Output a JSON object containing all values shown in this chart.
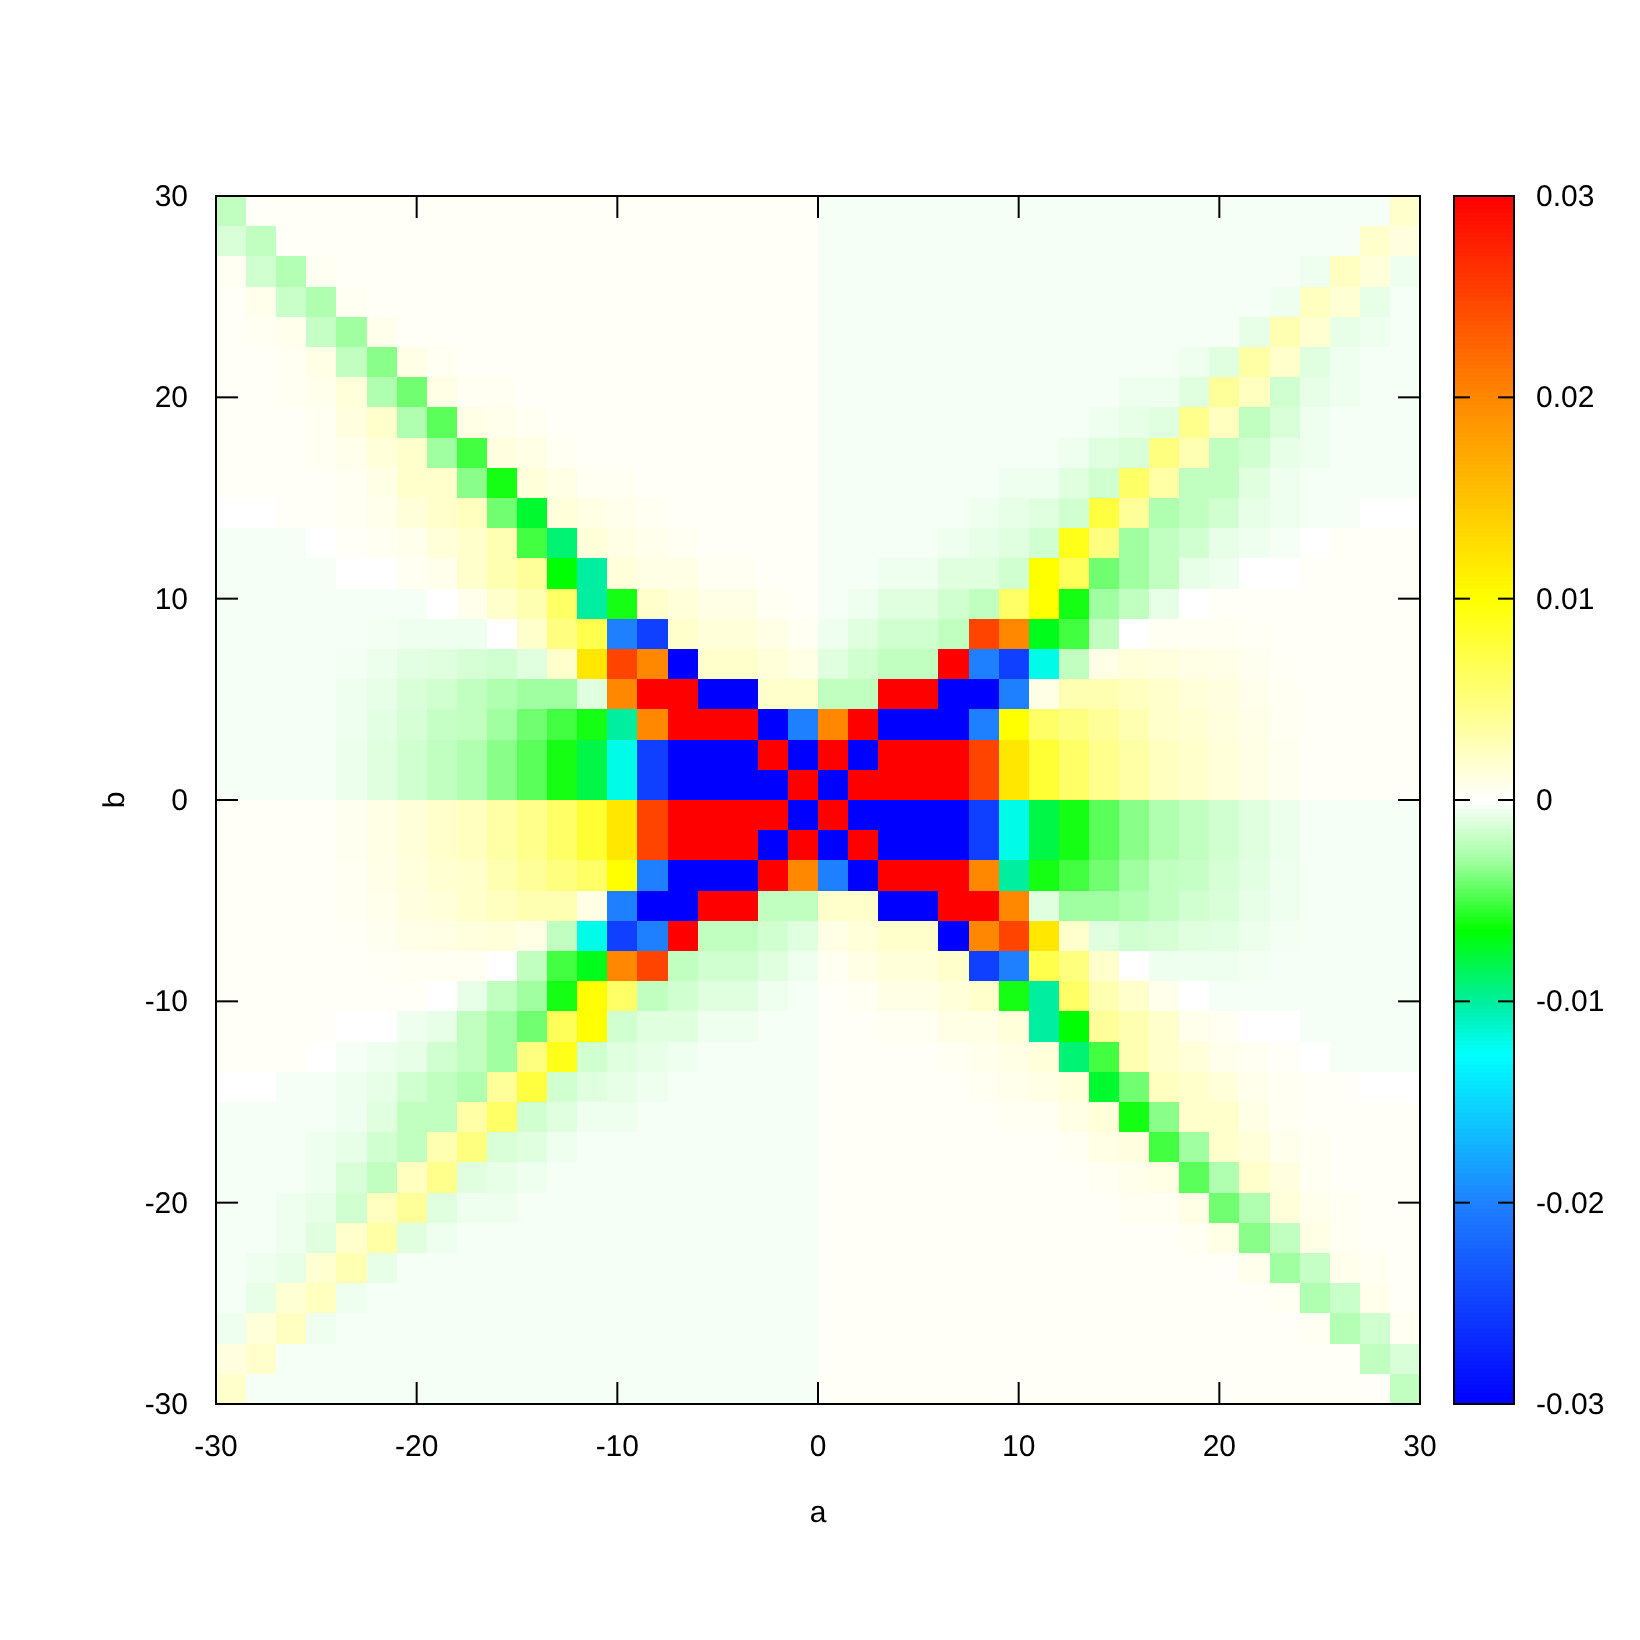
{
  "chart_data": {
    "type": "heatmap",
    "xlabel": "a",
    "ylabel": "b",
    "xlim": [
      -30,
      30
    ],
    "ylim": [
      -30,
      30
    ],
    "xticks": [
      -30,
      -20,
      -10,
      0,
      10,
      20,
      30
    ],
    "yticks": [
      -30,
      -20,
      -10,
      0,
      10,
      20,
      30
    ],
    "clim": [
      -0.03,
      0.03
    ],
    "cticks": [
      -0.03,
      -0.02,
      -0.01,
      0,
      0.01,
      0.02,
      0.03
    ],
    "cells": [
      [
        -0.002,
        0.0003,
        0.0003,
        0.0003,
        0.0003,
        0.0003,
        0.0003,
        0.0003,
        0.0003,
        0.0003,
        0.0003,
        0.0003,
        0.0003,
        0.0003,
        0.0003,
        0.0003,
        0.0003,
        0.0003,
        0.0003,
        0.0003,
        -0.0003,
        -0.0003,
        -0.0003,
        -0.0003,
        -0.0003,
        -0.0003,
        -0.0003,
        -0.0003,
        -0.0003,
        -0.0003,
        -0.0003,
        -0.0003,
        -0.0003,
        -0.0003,
        -0.0003,
        -0.0003,
        -0.0003,
        -0.0003,
        -0.0003,
        0.002
      ],
      [
        -0.0012,
        -0.002,
        0.0003,
        0.0003,
        0.0003,
        0.0003,
        0.0003,
        0.0003,
        0.0003,
        0.0003,
        0.0003,
        0.0003,
        0.0003,
        0.0003,
        0.0003,
        0.0003,
        0.0003,
        0.0003,
        0.0003,
        0.0003,
        -0.0003,
        -0.0003,
        -0.0003,
        -0.0003,
        -0.0003,
        -0.0003,
        -0.0003,
        -0.0003,
        -0.0003,
        -0.0003,
        -0.0003,
        -0.0003,
        -0.0003,
        -0.0003,
        -0.0003,
        -0.0003,
        -0.0003,
        -0.0003,
        0.002,
        0.0012
      ],
      [
        0.0005,
        -0.0015,
        -0.0024,
        0.0005,
        0.0003,
        0.0003,
        0.0003,
        0.0003,
        0.0003,
        0.0003,
        0.0003,
        0.0003,
        0.0003,
        0.0003,
        0.0003,
        0.0003,
        0.0003,
        0.0003,
        0.0003,
        0.0003,
        -0.0003,
        -0.0003,
        -0.0003,
        -0.0003,
        -0.0003,
        -0.0003,
        -0.0003,
        -0.0003,
        -0.0003,
        -0.0003,
        -0.0003,
        -0.0003,
        -0.0003,
        -0.0003,
        -0.0003,
        -0.0003,
        -0.0005,
        0.0024,
        0.0015,
        -0.0005
      ],
      [
        0.0003,
        0.0008,
        -0.0017,
        -0.0025,
        0.0005,
        0.0003,
        0.0003,
        0.0003,
        0.0003,
        0.0003,
        0.0003,
        0.0003,
        0.0003,
        0.0003,
        0.0003,
        0.0003,
        0.0003,
        0.0003,
        0.0003,
        0.0003,
        -0.0003,
        -0.0003,
        -0.0003,
        -0.0003,
        -0.0003,
        -0.0003,
        -0.0003,
        -0.0003,
        -0.0003,
        -0.0003,
        -0.0003,
        -0.0003,
        -0.0003,
        -0.0003,
        -0.0003,
        -0.0005,
        0.0025,
        0.0017,
        -0.0008,
        -0.0003
      ],
      [
        0.0003,
        0.0005,
        0.0008,
        -0.0018,
        -0.003,
        0.0008,
        0.0003,
        0.0003,
        0.0003,
        0.0003,
        0.0003,
        0.0003,
        0.0003,
        0.0003,
        0.0003,
        0.0003,
        0.0003,
        0.0003,
        0.0003,
        0.0003,
        -0.0003,
        -0.0003,
        -0.0003,
        -0.0003,
        -0.0003,
        -0.0003,
        -0.0003,
        -0.0003,
        -0.0003,
        -0.0003,
        -0.0003,
        -0.0003,
        -0.0003,
        -0.0003,
        -0.0008,
        0.003,
        0.0018,
        -0.0008,
        -0.0005,
        -0.0003
      ],
      [
        0.0003,
        0.0003,
        0.0005,
        0.001,
        -0.002,
        -0.0035,
        0.001,
        0.0005,
        0.0003,
        0.0003,
        0.0003,
        0.0003,
        0.0003,
        0.0003,
        0.0003,
        0.0003,
        0.0003,
        0.0003,
        0.0003,
        0.0003,
        -0.0003,
        -0.0003,
        -0.0003,
        -0.0003,
        -0.0003,
        -0.0003,
        -0.0003,
        -0.0003,
        -0.0003,
        -0.0003,
        -0.0003,
        -0.0003,
        -0.0005,
        -0.001,
        0.0035,
        0.002,
        -0.001,
        -0.0005,
        -0.0003,
        -0.0003
      ],
      [
        0.0003,
        0.0003,
        0.0005,
        0.0008,
        0.0015,
        -0.0025,
        -0.004,
        0.001,
        0.0005,
        0.0005,
        0.0003,
        0.0003,
        0.0003,
        0.0003,
        0.0003,
        0.0003,
        0.0003,
        0.0003,
        0.0003,
        0.0003,
        -0.0003,
        -0.0003,
        -0.0003,
        -0.0003,
        -0.0003,
        -0.0003,
        -0.0003,
        -0.0003,
        -0.0003,
        -0.0003,
        -0.0005,
        -0.0005,
        -0.001,
        0.004,
        0.0025,
        -0.0015,
        -0.0008,
        -0.0005,
        -0.0003,
        -0.0003
      ],
      [
        0.0003,
        0.0003,
        0.0003,
        0.0005,
        0.0012,
        0.002,
        -0.0025,
        -0.0045,
        0.001,
        0.0008,
        0.0005,
        0.0003,
        0.0003,
        0.0003,
        0.0003,
        0.0003,
        0.0003,
        0.0003,
        0.0003,
        0.0003,
        -0.0003,
        -0.0003,
        -0.0003,
        -0.0003,
        -0.0003,
        -0.0003,
        -0.0003,
        -0.0003,
        -0.0003,
        -0.0005,
        -0.0008,
        -0.001,
        0.0045,
        0.0025,
        -0.002,
        -0.0012,
        -0.0005,
        -0.0003,
        -0.0003,
        -0.0003
      ],
      [
        0.0003,
        0.0003,
        0.0003,
        0.0005,
        0.0008,
        0.0015,
        0.002,
        -0.003,
        -0.005,
        0.0012,
        0.001,
        0.0005,
        0.0003,
        0.0003,
        0.0003,
        0.0003,
        0.0003,
        0.0003,
        0.0003,
        0.0003,
        -0.0003,
        -0.0003,
        -0.0003,
        -0.0003,
        -0.0003,
        -0.0003,
        -0.0003,
        -0.0003,
        -0.0005,
        -0.001,
        -0.0012,
        0.005,
        0.003,
        -0.002,
        -0.0015,
        -0.0008,
        -0.0005,
        -0.0003,
        -0.0003,
        -0.0003
      ],
      [
        0.0003,
        0.0003,
        0.0003,
        0.0003,
        0.0005,
        0.001,
        0.002,
        0.002,
        -0.0035,
        -0.006,
        0.0015,
        0.001,
        0.0005,
        0.0005,
        0.0003,
        0.0003,
        0.0003,
        0.0003,
        0.0003,
        0.0003,
        -0.0003,
        -0.0003,
        -0.0003,
        -0.0003,
        -0.0003,
        -0.0003,
        -0.0005,
        -0.0005,
        -0.001,
        -0.0015,
        0.006,
        0.0035,
        -0.002,
        -0.002,
        -0.001,
        -0.0005,
        -0.0003,
        -0.0003,
        -0.0003,
        -0.0003
      ],
      [
        0,
        0,
        0.0003,
        0.0003,
        0.0005,
        0.0008,
        0.0015,
        0.002,
        0.0025,
        -0.004,
        -0.0075,
        0.0015,
        0.001,
        0.0008,
        0.0005,
        0.0003,
        0.0003,
        0.0003,
        0.0003,
        0.0003,
        -0.0003,
        -0.0003,
        -0.0003,
        -0.0003,
        -0.0003,
        -0.0005,
        -0.0008,
        -0.001,
        -0.0015,
        0.0075,
        0.004,
        -0.0025,
        -0.002,
        -0.0015,
        -0.0008,
        -0.0005,
        -0.0003,
        -0.0003,
        0,
        0
      ],
      [
        -0.0003,
        -0.0003,
        -0.0003,
        0,
        0.0003,
        0.0005,
        0.0008,
        0.0015,
        0.002,
        0.003,
        -0.005,
        -0.009,
        0.0015,
        0.001,
        0.0008,
        0.0005,
        0.0003,
        0.0003,
        0.0003,
        0.0003,
        -0.0003,
        -0.0003,
        -0.0003,
        -0.0003,
        -0.0005,
        -0.0008,
        -0.001,
        -0.0015,
        0.009,
        0.005,
        -0.003,
        -0.002,
        -0.0015,
        -0.0008,
        -0.0005,
        -0.0003,
        0,
        0.0003,
        0.0003,
        0.0003
      ],
      [
        -0.0003,
        -0.0003,
        -0.0003,
        -0.0003,
        0,
        0,
        0.0005,
        0.0008,
        0.002,
        0.003,
        0.004,
        -0.0065,
        -0.01,
        0.0015,
        0.001,
        0.001,
        0.0005,
        0.0005,
        0.0003,
        0.0003,
        -0.0003,
        -0.0003,
        -0.0005,
        -0.0005,
        -0.001,
        -0.001,
        -0.0015,
        0.01,
        0.0065,
        -0.004,
        -0.003,
        -0.002,
        -0.0008,
        -0.0005,
        0,
        0,
        0.0003,
        0.0003,
        0.0003,
        0.0003
      ],
      [
        -0.0003,
        -0.0003,
        -0.0003,
        -0.0003,
        -0.0003,
        -0.0003,
        -0.0003,
        0,
        0.0008,
        0.002,
        0.003,
        0.006,
        -0.01,
        -0.006,
        0.002,
        0.0015,
        0.001,
        0.001,
        0.0005,
        0.0003,
        -0.0003,
        -0.0005,
        -0.001,
        -0.001,
        -0.0015,
        -0.002,
        0.006,
        0.01,
        -0.006,
        -0.003,
        -0.002,
        -0.0008,
        0,
        0.0003,
        0.0003,
        0.0003,
        0.0003,
        0.0003,
        0.0003,
        0.0003
      ],
      [
        -0.0003,
        -0.0003,
        -0.0003,
        -0.0003,
        -0.0003,
        -0.0004,
        -0.0005,
        -0.0005,
        -0.0005,
        0,
        0.002,
        0.005,
        0.007,
        -0.02,
        -0.025,
        0.002,
        0.0015,
        0.0015,
        0.001,
        0.0005,
        -0.0005,
        -0.001,
        -0.0015,
        -0.0015,
        -0.002,
        0.025,
        0.02,
        -0.007,
        -0.005,
        -0.002,
        0,
        0.0005,
        0.0005,
        0.0005,
        0.0004,
        0.0003,
        0.0003,
        0.0003,
        0.0003,
        0.0003
      ],
      [
        -0.0003,
        -0.0003,
        -0.0003,
        -0.0003,
        -0.0004,
        -0.0006,
        -0.0009,
        -0.001,
        -0.0013,
        -0.0015,
        -0.001,
        0.002,
        0.012,
        0.025,
        0.02,
        -0.03,
        0.002,
        0.002,
        0.0015,
        0.001,
        -0.001,
        -0.0015,
        -0.002,
        -0.002,
        0.03,
        -0.02,
        -0.025,
        -0.012,
        -0.002,
        0.001,
        0.0015,
        0.0013,
        0.001,
        0.0009,
        0.0006,
        0.0004,
        0.0003,
        0.0003,
        0.0003,
        0.0003
      ],
      [
        -0.0003,
        -0.0003,
        -0.0003,
        -0.0003,
        -0.0005,
        -0.0008,
        -0.0012,
        -0.0015,
        -0.002,
        -0.0025,
        -0.003,
        -0.003,
        -0.001,
        0.02,
        0.03,
        0.03,
        -0.03,
        -0.03,
        0.002,
        0.002,
        -0.002,
        -0.002,
        0.03,
        0.03,
        -0.03,
        -0.03,
        -0.02,
        0.001,
        0.003,
        0.003,
        0.0025,
        0.002,
        0.0015,
        0.0012,
        0.0008,
        0.0005,
        0.0003,
        0.0003,
        0.0003,
        0.0003
      ],
      [
        -0.0003,
        -0.0003,
        -0.0003,
        -0.0003,
        -0.0005,
        -0.0009,
        -0.0013,
        -0.0018,
        -0.002,
        -0.003,
        -0.004,
        -0.005,
        -0.006,
        -0.01,
        0.02,
        0.03,
        0.03,
        0.03,
        -0.03,
        -0.02,
        0.02,
        0.03,
        -0.03,
        -0.03,
        -0.03,
        -0.02,
        0.01,
        0.006,
        0.005,
        0.004,
        0.003,
        0.002,
        0.0018,
        0.0013,
        0.0009,
        0.0005,
        0.0003,
        0.0003,
        0.0003,
        0.0003
      ],
      [
        -0.0003,
        -0.0003,
        -0.0003,
        -0.0003,
        -0.0006,
        -0.001,
        -0.0015,
        -0.002,
        -0.0025,
        -0.0035,
        -0.0045,
        -0.006,
        -0.008,
        -0.012,
        -0.025,
        -0.03,
        -0.03,
        -0.03,
        0.03,
        -0.03,
        0.03,
        -0.03,
        0.03,
        0.03,
        0.03,
        0.025,
        0.012,
        0.008,
        0.006,
        0.0045,
        0.0035,
        0.0025,
        0.002,
        0.0015,
        0.001,
        0.0006,
        0.0003,
        0.0003,
        0.0003,
        0.0003
      ],
      [
        -0.0003,
        -0.0003,
        -0.0003,
        -0.0003,
        -0.0006,
        -0.001,
        -0.0015,
        -0.002,
        -0.0025,
        -0.0035,
        -0.0045,
        -0.006,
        -0.008,
        -0.012,
        -0.025,
        -0.03,
        -0.03,
        -0.03,
        -0.03,
        0.03,
        -0.03,
        0.03,
        0.03,
        0.03,
        0.03,
        0.025,
        0.012,
        0.008,
        0.006,
        0.0045,
        0.0035,
        0.0025,
        0.002,
        0.0015,
        0.001,
        0.0006,
        0.0003,
        0.0003,
        0.0003,
        0.0003
      ],
      [
        0.0003,
        0.0003,
        0.0003,
        0.0003,
        0.0006,
        0.001,
        0.0015,
        0.002,
        0.0025,
        0.0035,
        0.0045,
        0.006,
        0.008,
        0.012,
        0.025,
        0.03,
        0.03,
        0.03,
        0.03,
        -0.03,
        0.03,
        -0.03,
        -0.03,
        -0.03,
        -0.03,
        -0.025,
        -0.012,
        -0.008,
        -0.006,
        -0.0045,
        -0.0035,
        -0.0025,
        -0.002,
        -0.0015,
        -0.001,
        -0.0006,
        -0.0003,
        -0.0003,
        -0.0003,
        -0.0003
      ],
      [
        0.0003,
        0.0003,
        0.0003,
        0.0003,
        0.0006,
        0.001,
        0.0015,
        0.002,
        0.0025,
        0.0035,
        0.0045,
        0.006,
        0.008,
        0.012,
        0.025,
        0.03,
        0.03,
        0.03,
        -0.03,
        0.03,
        -0.03,
        0.03,
        -0.03,
        -0.03,
        -0.03,
        -0.025,
        -0.012,
        -0.008,
        -0.006,
        -0.0045,
        -0.0035,
        -0.0025,
        -0.002,
        -0.0015,
        -0.001,
        -0.0006,
        -0.0003,
        -0.0003,
        -0.0003,
        -0.0003
      ],
      [
        0.0003,
        0.0003,
        0.0003,
        0.0003,
        0.0005,
        0.0009,
        0.0013,
        0.0018,
        0.002,
        0.003,
        0.004,
        0.005,
        0.006,
        0.01,
        -0.02,
        -0.03,
        -0.03,
        -0.03,
        0.03,
        0.02,
        -0.02,
        -0.03,
        0.03,
        0.03,
        0.03,
        0.02,
        -0.01,
        -0.006,
        -0.005,
        -0.004,
        -0.003,
        -0.002,
        -0.0018,
        -0.0013,
        -0.0009,
        -0.0005,
        -0.0003,
        -0.0003,
        -0.0003,
        -0.0003
      ],
      [
        0.0003,
        0.0003,
        0.0003,
        0.0003,
        0.0005,
        0.0008,
        0.0012,
        0.0015,
        0.002,
        0.0025,
        0.003,
        0.003,
        0.001,
        -0.02,
        -0.03,
        -0.03,
        0.03,
        0.03,
        -0.002,
        -0.002,
        0.002,
        0.002,
        -0.03,
        -0.03,
        0.03,
        0.03,
        0.02,
        -0.001,
        -0.003,
        -0.003,
        -0.0025,
        -0.002,
        -0.0015,
        -0.0012,
        -0.0008,
        -0.0005,
        -0.0003,
        -0.0003,
        -0.0003,
        -0.0003
      ],
      [
        0.0003,
        0.0003,
        0.0003,
        0.0003,
        0.0004,
        0.0006,
        0.0009,
        0.001,
        0.0013,
        0.0015,
        0.001,
        -0.002,
        -0.012,
        -0.025,
        -0.02,
        0.03,
        -0.002,
        -0.002,
        -0.0015,
        -0.001,
        0.001,
        0.0015,
        0.002,
        0.002,
        -0.03,
        0.02,
        0.025,
        0.012,
        0.002,
        -0.001,
        -0.0015,
        -0.0013,
        -0.001,
        -0.0009,
        -0.0006,
        -0.0004,
        -0.0003,
        -0.0003,
        -0.0003,
        -0.0003
      ],
      [
        0.0003,
        0.0003,
        0.0003,
        0.0003,
        0.0003,
        0.0004,
        0.0005,
        0.0005,
        0.0005,
        0,
        -0.002,
        -0.005,
        -0.007,
        0.02,
        0.025,
        -0.002,
        -0.0015,
        -0.0015,
        -0.001,
        -0.0005,
        0.0005,
        0.001,
        0.0015,
        0.0015,
        0.002,
        -0.025,
        -0.02,
        0.007,
        0.005,
        0.002,
        0,
        -0.0005,
        -0.0005,
        -0.0005,
        -0.0004,
        -0.0003,
        -0.0003,
        -0.0003,
        -0.0003,
        -0.0003
      ],
      [
        0.0003,
        0.0003,
        0.0003,
        0.0003,
        0.0003,
        0.0003,
        0.0003,
        0,
        -0.0008,
        -0.002,
        -0.003,
        -0.006,
        0.01,
        0.006,
        -0.002,
        -0.0015,
        -0.001,
        -0.001,
        -0.0005,
        -0.0003,
        0.0003,
        0.0005,
        0.001,
        0.001,
        0.0015,
        0.002,
        -0.006,
        -0.01,
        0.006,
        0.003,
        0.002,
        0.0008,
        0,
        -0.0003,
        -0.0003,
        -0.0003,
        -0.0003,
        -0.0003,
        -0.0003,
        -0.0003
      ],
      [
        0.0003,
        0.0003,
        0.0003,
        0.0003,
        0,
        0,
        -0.0005,
        -0.0008,
        -0.002,
        -0.003,
        -0.004,
        0.0065,
        0.01,
        -0.0015,
        -0.001,
        -0.001,
        -0.0005,
        -0.0005,
        -0.0003,
        -0.0003,
        0.0003,
        0.0003,
        0.0005,
        0.0005,
        0.001,
        0.001,
        0.0015,
        -0.01,
        -0.0065,
        0.004,
        0.003,
        0.002,
        0.0008,
        0.0005,
        0,
        0,
        -0.0003,
        -0.0003,
        -0.0003,
        -0.0003
      ],
      [
        0.0003,
        0.0003,
        0.0003,
        0,
        -0.0003,
        -0.0005,
        -0.0008,
        -0.0015,
        -0.002,
        -0.003,
        0.005,
        0.009,
        -0.0015,
        -0.001,
        -0.0008,
        -0.0005,
        -0.0003,
        -0.0003,
        -0.0003,
        -0.0003,
        0.0003,
        0.0003,
        0.0003,
        0.0003,
        0.0005,
        0.0008,
        0.001,
        0.0015,
        -0.009,
        -0.005,
        0.003,
        0.002,
        0.0015,
        0.0008,
        0.0005,
        0.0003,
        0,
        -0.0003,
        -0.0003,
        -0.0003
      ],
      [
        0,
        0,
        -0.0003,
        -0.0003,
        -0.0005,
        -0.0008,
        -0.0015,
        -0.002,
        -0.0025,
        0.004,
        0.0075,
        -0.0015,
        -0.001,
        -0.0008,
        -0.0005,
        -0.0003,
        -0.0003,
        -0.0003,
        -0.0003,
        -0.0003,
        0.0003,
        0.0003,
        0.0003,
        0.0003,
        0.0003,
        0.0005,
        0.0008,
        0.001,
        0.0015,
        -0.0075,
        -0.004,
        0.0025,
        0.002,
        0.0015,
        0.0008,
        0.0005,
        0.0003,
        0.0003,
        0,
        0
      ],
      [
        -0.0003,
        -0.0003,
        -0.0003,
        -0.0003,
        -0.0005,
        -0.001,
        -0.002,
        -0.002,
        0.0035,
        0.006,
        -0.0015,
        -0.001,
        -0.0005,
        -0.0005,
        -0.0003,
        -0.0003,
        -0.0003,
        -0.0003,
        -0.0003,
        -0.0003,
        0.0003,
        0.0003,
        0.0003,
        0.0003,
        0.0003,
        0.0003,
        0.0005,
        0.0005,
        0.001,
        0.0015,
        -0.006,
        -0.0035,
        0.002,
        0.002,
        0.001,
        0.0005,
        0.0003,
        0.0003,
        0.0003,
        0.0003
      ],
      [
        -0.0003,
        -0.0003,
        -0.0003,
        -0.0005,
        -0.0008,
        -0.0015,
        -0.002,
        0.003,
        0.005,
        -0.0012,
        -0.001,
        -0.0005,
        -0.0003,
        -0.0003,
        -0.0003,
        -0.0003,
        -0.0003,
        -0.0003,
        -0.0003,
        -0.0003,
        0.0003,
        0.0003,
        0.0003,
        0.0003,
        0.0003,
        0.0003,
        0.0003,
        0.0003,
        0.0005,
        0.001,
        0.0012,
        -0.005,
        -0.003,
        0.002,
        0.0015,
        0.0008,
        0.0005,
        0.0003,
        0.0003,
        0.0003
      ],
      [
        -0.0003,
        -0.0003,
        -0.0003,
        -0.0005,
        -0.0012,
        -0.002,
        0.0025,
        0.0045,
        -0.001,
        -0.0008,
        -0.0005,
        -0.0003,
        -0.0003,
        -0.0003,
        -0.0003,
        -0.0003,
        -0.0003,
        -0.0003,
        -0.0003,
        -0.0003,
        0.0003,
        0.0003,
        0.0003,
        0.0003,
        0.0003,
        0.0003,
        0.0003,
        0.0003,
        0.0003,
        0.0005,
        0.0008,
        0.001,
        -0.0045,
        -0.0025,
        0.002,
        0.0012,
        0.0005,
        0.0003,
        0.0003,
        0.0003
      ],
      [
        -0.0003,
        -0.0003,
        -0.0005,
        -0.0008,
        -0.0015,
        0.0025,
        0.004,
        -0.001,
        -0.0005,
        -0.0005,
        -0.0003,
        -0.0003,
        -0.0003,
        -0.0003,
        -0.0003,
        -0.0003,
        -0.0003,
        -0.0003,
        -0.0003,
        -0.0003,
        0.0003,
        0.0003,
        0.0003,
        0.0003,
        0.0003,
        0.0003,
        0.0003,
        0.0003,
        0.0003,
        0.0003,
        0.0005,
        0.0005,
        0.001,
        -0.004,
        -0.0025,
        0.0015,
        0.0008,
        0.0005,
        0.0003,
        0.0003
      ],
      [
        -0.0003,
        -0.0003,
        -0.0005,
        -0.001,
        0.002,
        0.0035,
        -0.001,
        -0.0005,
        -0.0003,
        -0.0003,
        -0.0003,
        -0.0003,
        -0.0003,
        -0.0003,
        -0.0003,
        -0.0003,
        -0.0003,
        -0.0003,
        -0.0003,
        -0.0003,
        0.0003,
        0.0003,
        0.0003,
        0.0003,
        0.0003,
        0.0003,
        0.0003,
        0.0003,
        0.0003,
        0.0003,
        0.0003,
        0.0003,
        0.0005,
        0.001,
        -0.0035,
        -0.002,
        0.001,
        0.0005,
        0.0003,
        0.0003
      ],
      [
        -0.0003,
        -0.0005,
        -0.0008,
        0.0018,
        0.003,
        -0.0008,
        -0.0003,
        -0.0003,
        -0.0003,
        -0.0003,
        -0.0003,
        -0.0003,
        -0.0003,
        -0.0003,
        -0.0003,
        -0.0003,
        -0.0003,
        -0.0003,
        -0.0003,
        -0.0003,
        0.0003,
        0.0003,
        0.0003,
        0.0003,
        0.0003,
        0.0003,
        0.0003,
        0.0003,
        0.0003,
        0.0003,
        0.0003,
        0.0003,
        0.0003,
        0.0003,
        0.0008,
        -0.003,
        -0.0018,
        0.0008,
        0.0005,
        0.0003
      ],
      [
        -0.0003,
        -0.0008,
        0.0017,
        0.0025,
        -0.0005,
        -0.0003,
        -0.0003,
        -0.0003,
        -0.0003,
        -0.0003,
        -0.0003,
        -0.0003,
        -0.0003,
        -0.0003,
        -0.0003,
        -0.0003,
        -0.0003,
        -0.0003,
        -0.0003,
        -0.0003,
        0.0003,
        0.0003,
        0.0003,
        0.0003,
        0.0003,
        0.0003,
        0.0003,
        0.0003,
        0.0003,
        0.0003,
        0.0003,
        0.0003,
        0.0003,
        0.0003,
        0.0003,
        0.0005,
        -0.0025,
        -0.0017,
        0.0008,
        0.0003
      ],
      [
        -0.0005,
        0.0015,
        0.0024,
        -0.0005,
        -0.0003,
        -0.0003,
        -0.0003,
        -0.0003,
        -0.0003,
        -0.0003,
        -0.0003,
        -0.0003,
        -0.0003,
        -0.0003,
        -0.0003,
        -0.0003,
        -0.0003,
        -0.0003,
        -0.0003,
        -0.0003,
        0.0003,
        0.0003,
        0.0003,
        0.0003,
        0.0003,
        0.0003,
        0.0003,
        0.0003,
        0.0003,
        0.0003,
        0.0003,
        0.0003,
        0.0003,
        0.0003,
        0.0003,
        0.0003,
        0.0005,
        -0.0024,
        -0.0015,
        0.0005
      ],
      [
        0.0012,
        0.002,
        -0.0003,
        -0.0003,
        -0.0003,
        -0.0003,
        -0.0003,
        -0.0003,
        -0.0003,
        -0.0003,
        -0.0003,
        -0.0003,
        -0.0003,
        -0.0003,
        -0.0003,
        -0.0003,
        -0.0003,
        -0.0003,
        -0.0003,
        -0.0003,
        0.0003,
        0.0003,
        0.0003,
        0.0003,
        0.0003,
        0.0003,
        0.0003,
        0.0003,
        0.0003,
        0.0003,
        0.0003,
        0.0003,
        0.0003,
        0.0003,
        0.0003,
        0.0003,
        0.0003,
        0.0003,
        -0.002,
        -0.0012
      ],
      [
        0.002,
        -0.0003,
        -0.0003,
        -0.0003,
        -0.0003,
        -0.0003,
        -0.0003,
        -0.0003,
        -0.0003,
        -0.0003,
        -0.0003,
        -0.0003,
        -0.0003,
        -0.0003,
        -0.0003,
        -0.0003,
        -0.0003,
        -0.0003,
        -0.0003,
        -0.0003,
        0.0003,
        0.0003,
        0.0003,
        0.0003,
        0.0003,
        0.0003,
        0.0003,
        0.0003,
        0.0003,
        0.0003,
        0.0003,
        0.0003,
        0.0003,
        0.0003,
        0.0003,
        0.0003,
        0.0003,
        0.0003,
        0.0003,
        -0.002
      ]
    ]
  }
}
